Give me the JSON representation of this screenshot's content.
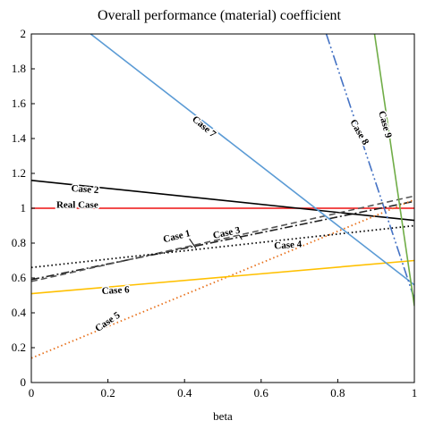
{
  "chart_data": {
    "type": "line",
    "title": "Overall performance (material) coefficient",
    "xlabel": "beta",
    "ylabel": "",
    "xlim": [
      0,
      1
    ],
    "ylim": [
      0,
      2
    ],
    "grid": false,
    "legend": "none",
    "x_ticks": [
      "0",
      "0.2",
      "0.4",
      "0.6",
      "0.8",
      "1"
    ],
    "y_ticks": [
      "0",
      "0.2",
      "0.4",
      "0.6",
      "0.8",
      "1",
      "1.2",
      "1.4",
      "1.6",
      "1.8",
      "2"
    ],
    "series": [
      {
        "name": "Real Case",
        "x": [
          0,
          1
        ],
        "y": [
          1.0,
          1.0
        ],
        "color": "#ee1111",
        "style": "solid"
      },
      {
        "name": "Case 1",
        "x": [
          0,
          1
        ],
        "y": [
          0.59,
          1.04
        ],
        "color": "#222222",
        "style": "dashdot"
      },
      {
        "name": "Case 2",
        "x": [
          0,
          1
        ],
        "y": [
          1.16,
          0.93
        ],
        "color": "#000000",
        "style": "solid"
      },
      {
        "name": "Case 3",
        "x": [
          0,
          1
        ],
        "y": [
          0.58,
          1.07
        ],
        "color": "#555555",
        "style": "dashed"
      },
      {
        "name": "Case 4",
        "x": [
          0,
          1
        ],
        "y": [
          0.66,
          0.9
        ],
        "color": "#000000",
        "style": "dotted"
      },
      {
        "name": "Case 5",
        "x": [
          0,
          1
        ],
        "y": [
          0.14,
          1.05
        ],
        "color": "#e8701a",
        "style": "dotted"
      },
      {
        "name": "Case 6",
        "x": [
          0,
          1
        ],
        "y": [
          0.51,
          0.7
        ],
        "color": "#ffc000",
        "style": "solid"
      },
      {
        "name": "Case 7",
        "x": [
          0.155,
          1
        ],
        "y": [
          2.0,
          0.56
        ],
        "color": "#5b9bd5",
        "style": "solid"
      },
      {
        "name": "Case 8",
        "x": [
          0.77,
          1
        ],
        "y": [
          2.0,
          0.48
        ],
        "color": "#4472c4",
        "style": "dashdotdot"
      },
      {
        "name": "Case 9",
        "x": [
          0.896,
          1
        ],
        "y": [
          2.0,
          0.44
        ],
        "color": "#70ad47",
        "style": "solid"
      }
    ],
    "annotations": [
      {
        "text": "Real Case",
        "series": "Real Case",
        "x": 0.12,
        "y": 1.015,
        "rotate": 0,
        "arrow_to": null
      },
      {
        "text": "Case 2",
        "series": "Case 2",
        "x": 0.14,
        "y": 1.105,
        "rotate": 4,
        "arrow_to": null
      },
      {
        "text": "Case 1",
        "series": "Case 1",
        "x": 0.38,
        "y": 0.835,
        "rotate": -14,
        "arrow_to": [
          0.43,
          0.77
        ]
      },
      {
        "text": "Case 3",
        "series": "Case 3",
        "x": 0.51,
        "y": 0.855,
        "rotate": -12,
        "arrow_to": [
          0.55,
          0.82
        ]
      },
      {
        "text": "Case 4",
        "series": "Case 4",
        "x": 0.67,
        "y": 0.785,
        "rotate": -4,
        "arrow_to": null
      },
      {
        "text": "Case 5",
        "series": "Case 5",
        "x": 0.2,
        "y": 0.345,
        "rotate": -34,
        "arrow_to": null
      },
      {
        "text": "Case 6",
        "series": "Case 6",
        "x": 0.22,
        "y": 0.525,
        "rotate": -3,
        "arrow_to": null
      },
      {
        "text": "Case 7",
        "series": "Case 7",
        "x": 0.45,
        "y": 1.465,
        "rotate": 40,
        "arrow_to": null
      },
      {
        "text": "Case 8",
        "series": "Case 8",
        "x": 0.855,
        "y": 1.435,
        "rotate": 60,
        "arrow_to": null
      },
      {
        "text": "Case 9",
        "series": "Case 9",
        "x": 0.922,
        "y": 1.48,
        "rotate": 75,
        "arrow_to": null
      }
    ]
  }
}
